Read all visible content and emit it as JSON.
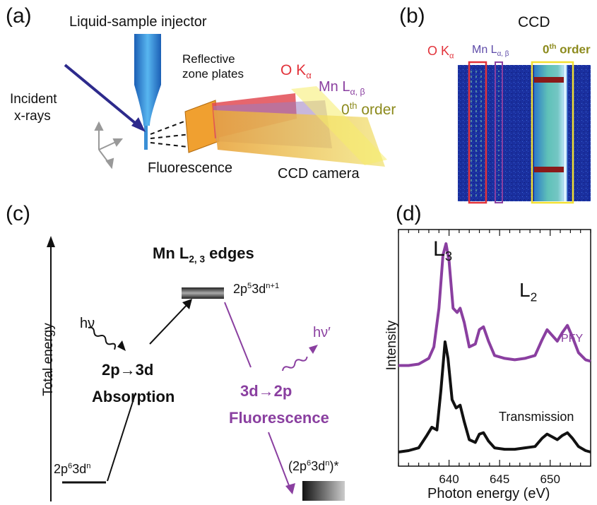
{
  "panel_a": {
    "label": "(a)",
    "injector": "Liquid-sample injector",
    "incident_1": "Incident",
    "incident_2": "x-rays",
    "zone_plates_1": "Reflective",
    "zone_plates_2": "zone plates",
    "fluorescence": "Fluorescence",
    "ccd_camera": "CCD camera",
    "o_k": "O K",
    "o_k_sub": "α",
    "mn_l": "Mn L",
    "mn_l_sub": "α, β",
    "zeroth": "0",
    "zeroth_sup": "th",
    "zeroth_word": " order"
  },
  "panel_b": {
    "label": "(b)",
    "ccd": "CCD",
    "o_k": "O K",
    "o_k_sub": "α",
    "mn_l": "Mn L",
    "mn_l_sub": "α, β",
    "zeroth": "0",
    "zeroth_sup": "th",
    "zeroth_word": " order"
  },
  "panel_c": {
    "label": "(c)",
    "y_axis": "Total energy",
    "edges_title": "Mn L",
    "edges_sub": "2, 3",
    "edges_word": " edges",
    "excited_state": "2p",
    "excited_sup1": "5",
    "excited_mid": "3d",
    "excited_sup2": "n+1",
    "hv": "hν",
    "hv_prime": "hν′",
    "absorption_1": "2p→3d",
    "absorption_2": "Absorption",
    "fluor_1": "3d→2p",
    "fluor_2": "Fluorescence",
    "ground_state": "2p",
    "ground_sup1": "6",
    "ground_mid": "3d",
    "ground_sup2": "n",
    "final_state": "(2p",
    "final_sup1": "6",
    "final_mid": "3d",
    "final_sup2": "n",
    "final_end": ")*"
  },
  "panel_d": {
    "label": "(d)",
    "l3": "L",
    "l3_sub": "3",
    "l2": "L",
    "l2_sub": "2",
    "pfy": "PFY",
    "transmission": "Transmission",
    "ylabel": "Intensity",
    "xlabel": "Photon energy (eV)"
  },
  "colors": {
    "purple": "#8a3fa0",
    "navy": "#2d2a8c",
    "red": "#e2323a",
    "olive": "#8c8a1c",
    "yellow": "#f2e032",
    "ccd_blue": "#1a2f9e"
  },
  "chart_data": {
    "type": "line",
    "xlabel": "Photon energy (eV)",
    "ylabel": "Intensity",
    "xlim": [
      635,
      654
    ],
    "xticks": [
      640,
      645,
      650
    ],
    "series": [
      {
        "name": "PFY",
        "color": "#8a3fa0",
        "x": [
          635,
          636,
          637,
          638,
          638.5,
          639,
          639.4,
          639.7,
          640,
          640.4,
          640.8,
          641.1,
          641.5,
          642,
          642.6,
          643,
          643.4,
          643.9,
          644.5,
          645.5,
          646.5,
          647.5,
          648.5,
          649.2,
          649.7,
          650.2,
          650.7,
          651.2,
          651.7,
          652.2,
          652.8,
          653.5,
          654
        ],
        "y": [
          0.15,
          0.15,
          0.16,
          0.2,
          0.28,
          0.55,
          0.92,
          1.0,
          0.88,
          0.55,
          0.52,
          0.55,
          0.45,
          0.28,
          0.3,
          0.4,
          0.42,
          0.32,
          0.22,
          0.2,
          0.19,
          0.2,
          0.22,
          0.33,
          0.4,
          0.36,
          0.32,
          0.38,
          0.43,
          0.35,
          0.24,
          0.19,
          0.18
        ]
      },
      {
        "name": "Transmission",
        "color": "#111111",
        "x": [
          635,
          636,
          637,
          637.8,
          638.3,
          638.8,
          639.2,
          639.6,
          639.9,
          640.3,
          640.7,
          641.1,
          641.5,
          642,
          642.6,
          643,
          643.4,
          643.9,
          644.5,
          645.5,
          646.5,
          647.5,
          648.5,
          649.2,
          649.7,
          650.2,
          650.7,
          651.2,
          651.7,
          652.2,
          652.8,
          653.5,
          654
        ],
        "y": [
          0.0,
          0.01,
          0.03,
          0.12,
          0.18,
          0.16,
          0.45,
          0.8,
          0.68,
          0.38,
          0.32,
          0.34,
          0.22,
          0.09,
          0.07,
          0.13,
          0.14,
          0.08,
          0.03,
          0.02,
          0.02,
          0.03,
          0.04,
          0.1,
          0.13,
          0.11,
          0.09,
          0.12,
          0.14,
          0.1,
          0.04,
          0.01,
          0.0
        ]
      }
    ]
  }
}
